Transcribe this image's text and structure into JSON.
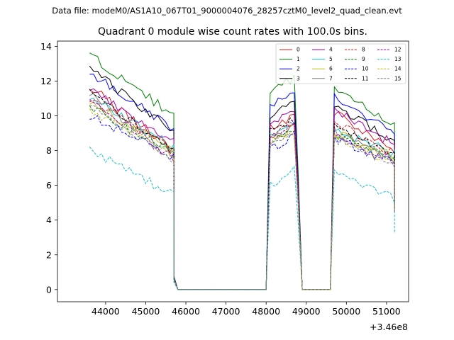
{
  "suptitle": "Data file: modeM0/AS1A10_067T01_9000004076_28257cztM0_level2_quad_clean.evt",
  "chart_data": {
    "type": "line",
    "title": "Quadrant 0 module wise count rates with 100.0s bins.",
    "xlabel": "",
    "ylabel": "",
    "x_offset_label": "+3.46e8",
    "xlim": [
      42800,
      51550
    ],
    "ylim": [
      -0.7,
      14.3
    ],
    "xticks": [
      44000,
      45000,
      46000,
      47000,
      48000,
      49000,
      50000,
      51000
    ],
    "xtick_labels": [
      "44000",
      "45000",
      "46000",
      "47000",
      "48000",
      "49000",
      "50000",
      "51000"
    ],
    "yticks": [
      0,
      2,
      4,
      6,
      8,
      10,
      12,
      14
    ],
    "ytick_labels": [
      "0",
      "2",
      "4",
      "6",
      "8",
      "10",
      "12",
      "14"
    ],
    "grid": false,
    "legend_position": "top-right",
    "legend_columns": 4,
    "segments": [
      {
        "start": 43600,
        "end": 45700
      },
      {
        "start": 48100,
        "end": 48700
      },
      {
        "start": 49700,
        "end": 51200
      }
    ],
    "series": [
      {
        "name": "0",
        "color": "#e31a1c",
        "dash": "solid",
        "s1": [
          11.7,
          8.0
        ],
        "s2": [
          9.3,
          9.9
        ],
        "s3": [
          10.2,
          8.0
        ]
      },
      {
        "name": "1",
        "color": "#008000",
        "dash": "solid",
        "s1": [
          13.5,
          10.0
        ],
        "s2": [
          11.5,
          12.1
        ],
        "s3": [
          11.6,
          9.5
        ]
      },
      {
        "name": "2",
        "color": "#0000ff",
        "dash": "solid",
        "s1": [
          12.5,
          9.2
        ],
        "s2": [
          10.6,
          11.2
        ],
        "s3": [
          11.0,
          9.0
        ]
      },
      {
        "name": "3",
        "color": "#000000",
        "dash": "solid",
        "s1": [
          12.8,
          9.0
        ],
        "s2": [
          9.8,
          10.9
        ],
        "s3": [
          10.6,
          8.5
        ]
      },
      {
        "name": "4",
        "color": "#aa00aa",
        "dash": "solid",
        "s1": [
          11.5,
          8.5
        ],
        "s2": [
          9.6,
          10.5
        ],
        "s3": [
          10.4,
          8.3
        ]
      },
      {
        "name": "5",
        "color": "#17becf",
        "dash": "solid",
        "s1": [
          11.0,
          8.2
        ],
        "s2": [
          8.8,
          9.6
        ],
        "s3": [
          9.2,
          7.8
        ]
      },
      {
        "name": "6",
        "color": "#bcbd22",
        "dash": "solid",
        "s1": [
          10.8,
          8.0
        ],
        "s2": [
          8.6,
          9.3
        ],
        "s3": [
          9.0,
          7.6
        ]
      },
      {
        "name": "7",
        "color": "#7f7f7f",
        "dash": "solid",
        "s1": [
          11.2,
          7.8
        ],
        "s2": [
          8.8,
          9.5
        ],
        "s3": [
          9.1,
          7.5
        ]
      },
      {
        "name": "8",
        "color": "#e31a1c",
        "dash": "dashed",
        "s1": [
          11.0,
          8.0
        ],
        "s2": [
          8.9,
          9.6
        ],
        "s3": [
          9.6,
          7.8
        ]
      },
      {
        "name": "9",
        "color": "#008000",
        "dash": "dashed",
        "s1": [
          10.6,
          7.7
        ],
        "s2": [
          8.6,
          9.2
        ],
        "s3": [
          9.0,
          7.4
        ]
      },
      {
        "name": "10",
        "color": "#0000ff",
        "dash": "dashed",
        "s1": [
          10.0,
          7.6
        ],
        "s2": [
          8.0,
          8.8
        ],
        "s3": [
          8.8,
          7.2
        ]
      },
      {
        "name": "11",
        "color": "#000000",
        "dash": "dashed",
        "s1": [
          11.3,
          8.0
        ],
        "s2": [
          9.3,
          9.8
        ],
        "s3": [
          9.6,
          7.7
        ]
      },
      {
        "name": "12",
        "color": "#aa00aa",
        "dash": "dashed",
        "s1": [
          11.0,
          7.5
        ],
        "s2": [
          8.7,
          9.5
        ],
        "s3": [
          9.0,
          7.3
        ]
      },
      {
        "name": "13",
        "color": "#17becf",
        "dash": "dashed",
        "s1": [
          8.1,
          5.4
        ],
        "s2": [
          6.0,
          6.9
        ],
        "s3": [
          6.8,
          5.2
        ]
      },
      {
        "name": "14",
        "color": "#bcbd22",
        "dash": "dashed",
        "s1": [
          10.4,
          7.6
        ],
        "s2": [
          8.3,
          9.0
        ],
        "s3": [
          8.8,
          7.3
        ]
      },
      {
        "name": "15",
        "color": "#7f7f7f",
        "dash": "dashed",
        "s1": [
          10.5,
          7.5
        ],
        "s2": [
          8.4,
          9.0
        ],
        "s3": [
          8.7,
          7.2
        ]
      }
    ]
  }
}
